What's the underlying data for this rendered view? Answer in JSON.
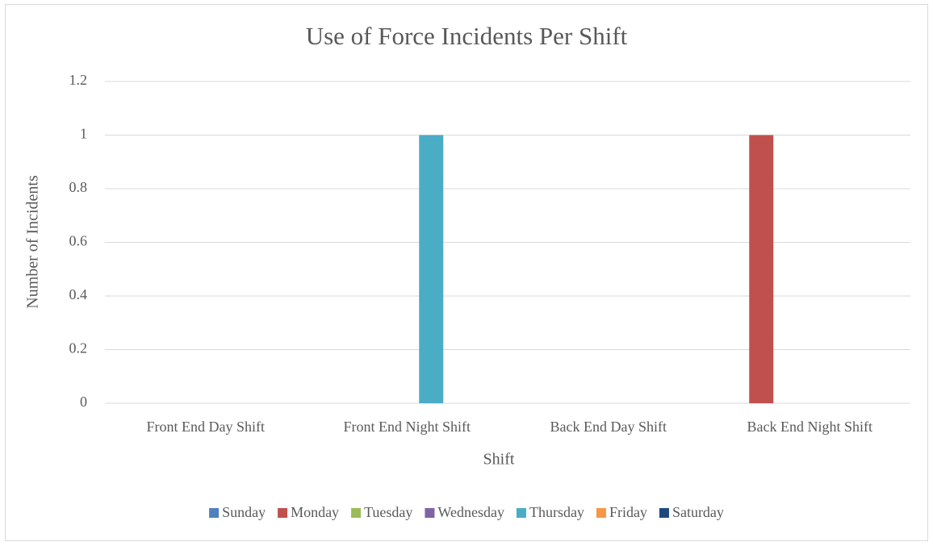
{
  "chart_data": {
    "type": "bar",
    "title": "Use of Force Incidents Per Shift",
    "x_label": "Shift",
    "y_label": "Number of Incidents",
    "categories": [
      "Front End Day Shift",
      "Front End Night Shift",
      "Back End Day Shift",
      "Back End Night Shift"
    ],
    "series": [
      {
        "name": "Sunday",
        "color": "#4f81bd",
        "values": [
          0,
          0,
          0,
          0
        ]
      },
      {
        "name": "Monday",
        "color": "#c0504d",
        "values": [
          0,
          0,
          0,
          1
        ]
      },
      {
        "name": "Tuesday",
        "color": "#9bbb59",
        "values": [
          0,
          0,
          0,
          0
        ]
      },
      {
        "name": "Wednesday",
        "color": "#8064a2",
        "values": [
          0,
          0,
          0,
          0
        ]
      },
      {
        "name": "Thursday",
        "color": "#4bacc6",
        "values": [
          0,
          1,
          0,
          0
        ]
      },
      {
        "name": "Friday",
        "color": "#f79646",
        "values": [
          0,
          0,
          0,
          0
        ]
      },
      {
        "name": "Saturday",
        "color": "#1f497d",
        "values": [
          0,
          0,
          0,
          0
        ]
      }
    ],
    "ylim": [
      0,
      1.2
    ],
    "yticks": [
      0,
      0.2,
      0.4,
      0.6,
      0.8,
      1,
      1.2
    ],
    "grid": true,
    "legend": "bottom"
  }
}
